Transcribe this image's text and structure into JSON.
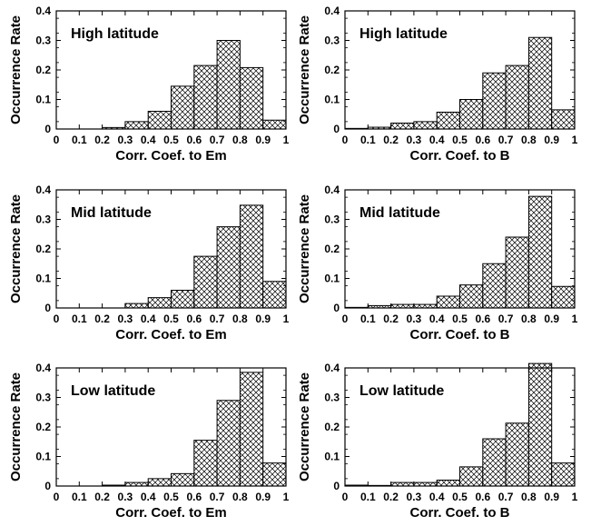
{
  "colors": {
    "bar_fill": "#ffffff",
    "hatch": "#000000",
    "axis": "#000000"
  },
  "chart_data": [
    {
      "type": "bar",
      "title": "High latitude",
      "xlabel": "Corr. Coef. to Em",
      "ylabel": "Occurrence Rate",
      "bin_edges": [
        0,
        0.1,
        0.2,
        0.3,
        0.4,
        0.5,
        0.6,
        0.7,
        0.8,
        0.9,
        1
      ],
      "values": [
        0.0,
        0.0,
        0.005,
        0.025,
        0.06,
        0.145,
        0.215,
        0.3,
        0.208,
        0.03
      ],
      "xticks": [
        "0",
        "0.1",
        "0.2",
        "0.3",
        "0.4",
        "0.5",
        "0.6",
        "0.7",
        "0.8",
        "0.9",
        "1"
      ],
      "yticks": [
        "0",
        "0.1",
        "0.2",
        "0.3",
        "0.4"
      ],
      "xlim": [
        0,
        1
      ],
      "ylim": [
        0,
        0.4
      ],
      "grid": false,
      "pattern": "crosshatch"
    },
    {
      "type": "bar",
      "title": "High latitude",
      "xlabel": "Corr. Coef. to B",
      "ylabel": "Occurrence Rate",
      "bin_edges": [
        0,
        0.1,
        0.2,
        0.3,
        0.4,
        0.5,
        0.6,
        0.7,
        0.8,
        0.9,
        1
      ],
      "values": [
        0.002,
        0.006,
        0.02,
        0.025,
        0.057,
        0.1,
        0.19,
        0.215,
        0.31,
        0.065
      ],
      "xticks": [
        "0",
        "0.1",
        "0.2",
        "0.3",
        "0.4",
        "0.5",
        "0.6",
        "0.7",
        "0.8",
        "0.9",
        "1"
      ],
      "yticks": [
        "0",
        "0.1",
        "0.2",
        "0.3",
        "0.4"
      ],
      "xlim": [
        0,
        1
      ],
      "ylim": [
        0,
        0.4
      ],
      "grid": false,
      "pattern": "crosshatch"
    },
    {
      "type": "bar",
      "title": "Mid latitude",
      "xlabel": "Corr. Coef. to Em",
      "ylabel": "Occurrence Rate",
      "bin_edges": [
        0,
        0.1,
        0.2,
        0.3,
        0.4,
        0.5,
        0.6,
        0.7,
        0.8,
        0.9,
        1
      ],
      "values": [
        0.0,
        0.0,
        0.0,
        0.015,
        0.035,
        0.06,
        0.175,
        0.275,
        0.348,
        0.09
      ],
      "xticks": [
        "0",
        "0.1",
        "0.2",
        "0.3",
        "0.4",
        "0.5",
        "0.6",
        "0.7",
        "0.8",
        "0.9",
        "1"
      ],
      "yticks": [
        "0",
        "0.1",
        "0.2",
        "0.3",
        "0.4"
      ],
      "xlim": [
        0,
        1
      ],
      "ylim": [
        0,
        0.4
      ],
      "grid": false,
      "pattern": "crosshatch"
    },
    {
      "type": "bar",
      "title": "Mid latitude",
      "xlabel": "Corr. Coef. to B",
      "ylabel": "Occurrence Rate",
      "bin_edges": [
        0,
        0.1,
        0.2,
        0.3,
        0.4,
        0.5,
        0.6,
        0.7,
        0.8,
        0.9,
        1
      ],
      "values": [
        0.002,
        0.008,
        0.012,
        0.012,
        0.04,
        0.078,
        0.15,
        0.24,
        0.378,
        0.073
      ],
      "xticks": [
        "0",
        "0.1",
        "0.2",
        "0.3",
        "0.4",
        "0.5",
        "0.6",
        "0.7",
        "0.8",
        "0.9",
        "1"
      ],
      "yticks": [
        "0",
        "0.1",
        "0.2",
        "0.3",
        "0.4"
      ],
      "xlim": [
        0,
        1
      ],
      "ylim": [
        0,
        0.4
      ],
      "grid": false,
      "pattern": "crosshatch"
    },
    {
      "type": "bar",
      "title": "Low latitude",
      "xlabel": "Corr. Coef.  to Em",
      "ylabel": "Occurrence Rate",
      "bin_edges": [
        0,
        0.1,
        0.2,
        0.3,
        0.4,
        0.5,
        0.6,
        0.7,
        0.8,
        0.9,
        1
      ],
      "values": [
        0.0,
        0.0,
        0.003,
        0.012,
        0.025,
        0.042,
        0.155,
        0.29,
        0.385,
        0.078
      ],
      "xticks": [
        "0",
        "0.1",
        "0.2",
        "0.3",
        "0.4",
        "0.5",
        "0.6",
        "0.7",
        "0.8",
        "0.9",
        "1"
      ],
      "yticks": [
        "0",
        "0.1",
        "0.2",
        "0.3",
        "0.4"
      ],
      "xlim": [
        0,
        1
      ],
      "ylim": [
        0,
        0.4
      ],
      "grid": false,
      "pattern": "crosshatch"
    },
    {
      "type": "bar",
      "title": "Low latitude",
      "xlabel": "Corr. Coef.  to B",
      "ylabel": "Occurrence Rate",
      "bin_edges": [
        0,
        0.1,
        0.2,
        0.3,
        0.4,
        0.5,
        0.6,
        0.7,
        0.8,
        0.9,
        1
      ],
      "values": [
        0.003,
        0.002,
        0.012,
        0.012,
        0.02,
        0.065,
        0.16,
        0.213,
        0.415,
        0.078
      ],
      "xticks": [
        "0",
        "0.1",
        "0.2",
        "0.3",
        "0.4",
        "0.5",
        "0.6",
        "0.7",
        "0.8",
        "0.9",
        "1"
      ],
      "yticks": [
        "0",
        "0.1",
        "0.2",
        "0.3",
        "0.4"
      ],
      "xlim": [
        0,
        1
      ],
      "ylim": [
        0,
        0.4
      ],
      "grid": false,
      "pattern": "crosshatch"
    }
  ]
}
